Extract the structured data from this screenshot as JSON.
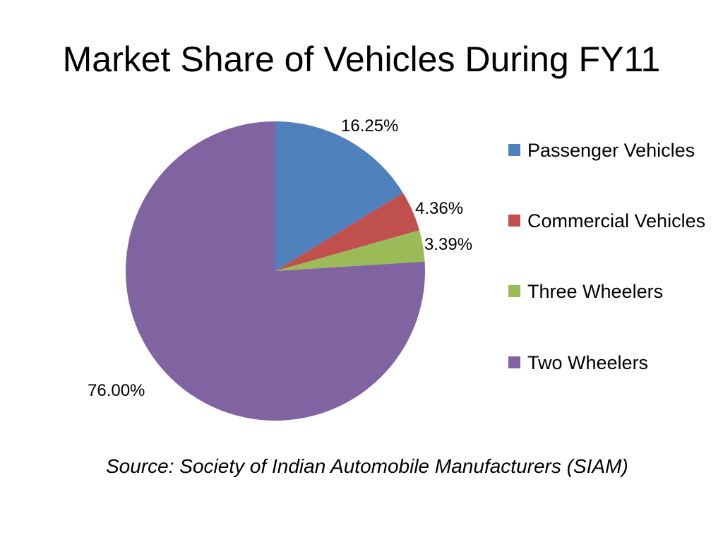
{
  "slide": {
    "title": "Market Share of Vehicles During FY11",
    "source": "Source: Society of Indian Automobile Manufacturers (SIAM)"
  },
  "chart_data": {
    "type": "pie",
    "title": "",
    "legend_position": "right",
    "start_angle_deg": 0,
    "direction": "clockwise",
    "slices": [
      {
        "name": "Passenger Vehicles",
        "value": 16.25,
        "label": "16.25%",
        "color": "#4F81BD"
      },
      {
        "name": "Commercial Vehicles",
        "value": 4.36,
        "label": "4.36%",
        "color": "#C0504D"
      },
      {
        "name": "Three Wheelers",
        "value": 3.39,
        "label": "3.39%",
        "color": "#9BBB59"
      },
      {
        "name": "Two Wheelers",
        "value": 76.0,
        "label": "76.00%",
        "color": "#8064A2"
      }
    ]
  }
}
